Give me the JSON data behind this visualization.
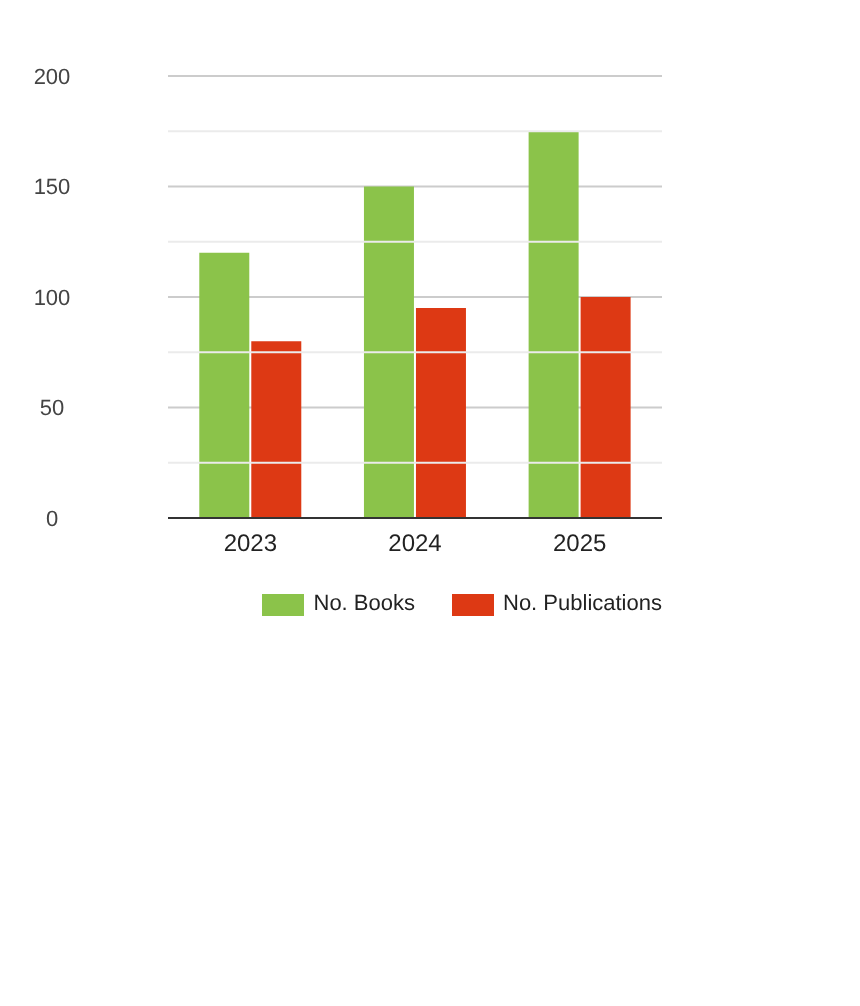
{
  "chart_data": {
    "type": "bar",
    "categories": [
      "2023",
      "2024",
      "2025"
    ],
    "series": [
      {
        "name": "No. Books",
        "color": "#8bc34a",
        "values": [
          120,
          150,
          175
        ]
      },
      {
        "name": "No. Publications",
        "color": "#dd3914",
        "values": [
          80,
          95,
          100
        ]
      }
    ],
    "ylim": [
      0,
      200
    ],
    "yticks": [
      0,
      {
        "value": 25,
        "label": null
      },
      50,
      {
        "value": 75,
        "label": null
      },
      100,
      {
        "value": 125,
        "label": null
      },
      150,
      {
        "value": 175,
        "label": null
      },
      200
    ],
    "grid": "y",
    "legend": "bottom right"
  }
}
